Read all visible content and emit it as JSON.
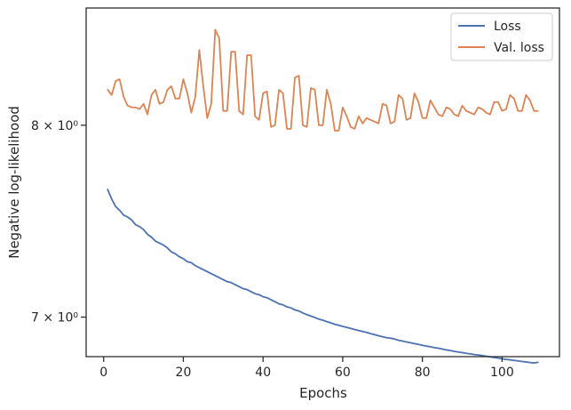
{
  "chart_data": {
    "type": "line",
    "title": "",
    "xlabel": "Epochs",
    "ylabel": "Negative log-likelihood",
    "xlim": [
      -4.4,
      114.4
    ],
    "ylim": [
      6.81,
      8.68
    ],
    "yscale": "log",
    "grid": false,
    "legend_position": "top-right",
    "x_ticks": [
      0,
      20,
      40,
      60,
      80,
      100
    ],
    "x_tick_labels": [
      "0",
      "20",
      "40",
      "60",
      "80",
      "100"
    ],
    "y_ticks": [
      7,
      8
    ],
    "y_tick_labels": [
      "7 × 10⁰",
      "8 × 10⁰"
    ],
    "x": [
      1,
      2,
      3,
      4,
      5,
      6,
      7,
      8,
      9,
      10,
      11,
      12,
      13,
      14,
      15,
      16,
      17,
      18,
      19,
      20,
      21,
      22,
      23,
      24,
      25,
      26,
      27,
      28,
      29,
      30,
      31,
      32,
      33,
      34,
      35,
      36,
      37,
      38,
      39,
      40,
      41,
      42,
      43,
      44,
      45,
      46,
      47,
      48,
      49,
      50,
      51,
      52,
      53,
      54,
      55,
      56,
      57,
      58,
      59,
      60,
      61,
      62,
      63,
      64,
      65,
      66,
      67,
      68,
      69,
      70,
      71,
      72,
      73,
      74,
      75,
      76,
      77,
      78,
      79,
      80,
      81,
      82,
      83,
      84,
      85,
      86,
      87,
      88,
      89,
      90,
      91,
      92,
      93,
      94,
      95,
      96,
      97,
      98,
      99,
      100,
      101,
      102,
      103,
      104,
      105,
      106,
      107,
      108,
      109
    ],
    "series": [
      {
        "name": "Loss",
        "color": "#4c72b0",
        "values": [
          7.65,
          7.6,
          7.56,
          7.54,
          7.515,
          7.505,
          7.49,
          7.465,
          7.455,
          7.44,
          7.415,
          7.4,
          7.38,
          7.37,
          7.36,
          7.345,
          7.325,
          7.315,
          7.3,
          7.29,
          7.275,
          7.27,
          7.255,
          7.245,
          7.235,
          7.225,
          7.215,
          7.205,
          7.195,
          7.185,
          7.175,
          7.17,
          7.16,
          7.15,
          7.14,
          7.135,
          7.125,
          7.115,
          7.11,
          7.1,
          7.095,
          7.085,
          7.075,
          7.065,
          7.06,
          7.05,
          7.045,
          7.035,
          7.03,
          7.02,
          7.012,
          7.005,
          6.998,
          6.99,
          6.985,
          6.978,
          6.972,
          6.965,
          6.96,
          6.955,
          6.95,
          6.945,
          6.94,
          6.935,
          6.93,
          6.926,
          6.92,
          6.915,
          6.91,
          6.905,
          6.9,
          6.898,
          6.894,
          6.888,
          6.884,
          6.88,
          6.876,
          6.872,
          6.868,
          6.864,
          6.86,
          6.857,
          6.853,
          6.85,
          6.846,
          6.842,
          6.839,
          6.835,
          6.832,
          6.829,
          6.826,
          6.823,
          6.82,
          6.818,
          6.815,
          6.812,
          6.809,
          6.806,
          6.803,
          6.8,
          6.797,
          6.795,
          6.792,
          6.79,
          6.787,
          6.785,
          6.782,
          6.78,
          6.783
        ]
      },
      {
        "name": "Val. loss",
        "color": "#dd8452",
        "values": [
          8.2,
          8.17,
          8.25,
          8.26,
          8.16,
          8.11,
          8.1,
          8.1,
          8.09,
          8.12,
          8.06,
          8.17,
          8.2,
          8.12,
          8.13,
          8.2,
          8.22,
          8.15,
          8.15,
          8.26,
          8.18,
          8.07,
          8.16,
          8.43,
          8.22,
          8.04,
          8.12,
          8.55,
          8.5,
          8.08,
          8.08,
          8.42,
          8.42,
          8.08,
          8.06,
          8.4,
          8.4,
          8.05,
          8.03,
          8.18,
          8.19,
          7.99,
          8.0,
          8.2,
          8.18,
          7.98,
          7.98,
          8.27,
          8.28,
          8.0,
          7.99,
          8.21,
          8.2,
          8.0,
          8.0,
          8.2,
          8.12,
          7.97,
          7.97,
          8.1,
          8.05,
          7.99,
          7.98,
          8.05,
          8.01,
          8.04,
          8.03,
          8.02,
          8.01,
          8.12,
          8.11,
          8.01,
          8.02,
          8.17,
          8.15,
          8.03,
          8.04,
          8.18,
          8.13,
          8.04,
          8.04,
          8.14,
          8.1,
          8.06,
          8.05,
          8.1,
          8.09,
          8.06,
          8.05,
          8.11,
          8.08,
          8.07,
          8.06,
          8.1,
          8.09,
          8.07,
          8.06,
          8.13,
          8.13,
          8.08,
          8.09,
          8.17,
          8.15,
          8.08,
          8.08,
          8.17,
          8.14,
          8.08,
          8.08
        ]
      }
    ]
  }
}
